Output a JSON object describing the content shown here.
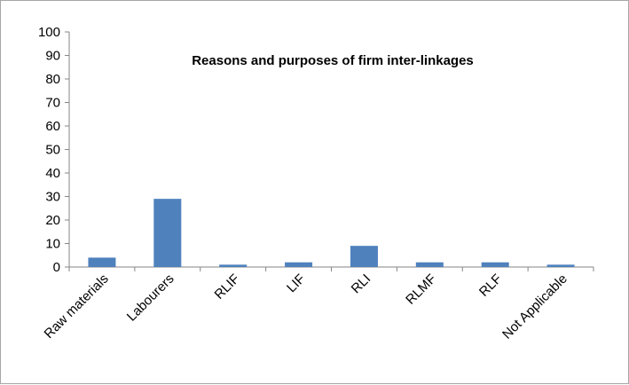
{
  "chart_data": {
    "type": "bar",
    "title": "Reasons and purposes of firm inter-linkages",
    "categories": [
      "Raw materials",
      "Labourers",
      "RLIF",
      "LIF",
      "RLI",
      "RLMF",
      "RLF",
      "Not Applicable"
    ],
    "values": [
      4,
      29,
      1,
      2,
      9,
      2,
      2,
      1
    ],
    "ylim": [
      0,
      100
    ],
    "yticks": [
      0,
      10,
      20,
      30,
      40,
      50,
      60,
      70,
      80,
      90,
      100
    ],
    "grid": false,
    "legend": "none",
    "bar_color": "#4f81bd"
  }
}
